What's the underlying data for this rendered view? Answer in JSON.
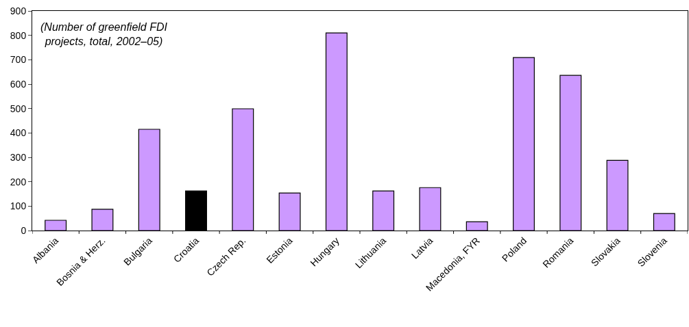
{
  "chart_data": {
    "type": "bar",
    "categories": [
      "Albania",
      "Bosnia & Herz.",
      "Bulgaria",
      "Croatia",
      "Czech Rep.",
      "Estonia",
      "Hungary",
      "Lithuania",
      "Latvia",
      "Macedonia, FYR",
      "Poland",
      "Romania",
      "Slovakia",
      "Slovenia"
    ],
    "values": [
      42,
      87,
      415,
      162,
      499,
      154,
      810,
      162,
      176,
      36,
      709,
      636,
      288,
      70
    ],
    "colors": [
      "#cc99ff",
      "#cc99ff",
      "#cc99ff",
      "#000000",
      "#cc99ff",
      "#cc99ff",
      "#cc99ff",
      "#cc99ff",
      "#cc99ff",
      "#cc99ff",
      "#cc99ff",
      "#cc99ff",
      "#cc99ff",
      "#cc99ff"
    ],
    "ylim": [
      0,
      900
    ],
    "yticks": [
      0,
      100,
      200,
      300,
      400,
      500,
      600,
      700,
      800,
      900
    ],
    "grid": false,
    "annotations": [
      "(Number of greenfield FDI\nprojects, total, 2002–05)"
    ]
  }
}
